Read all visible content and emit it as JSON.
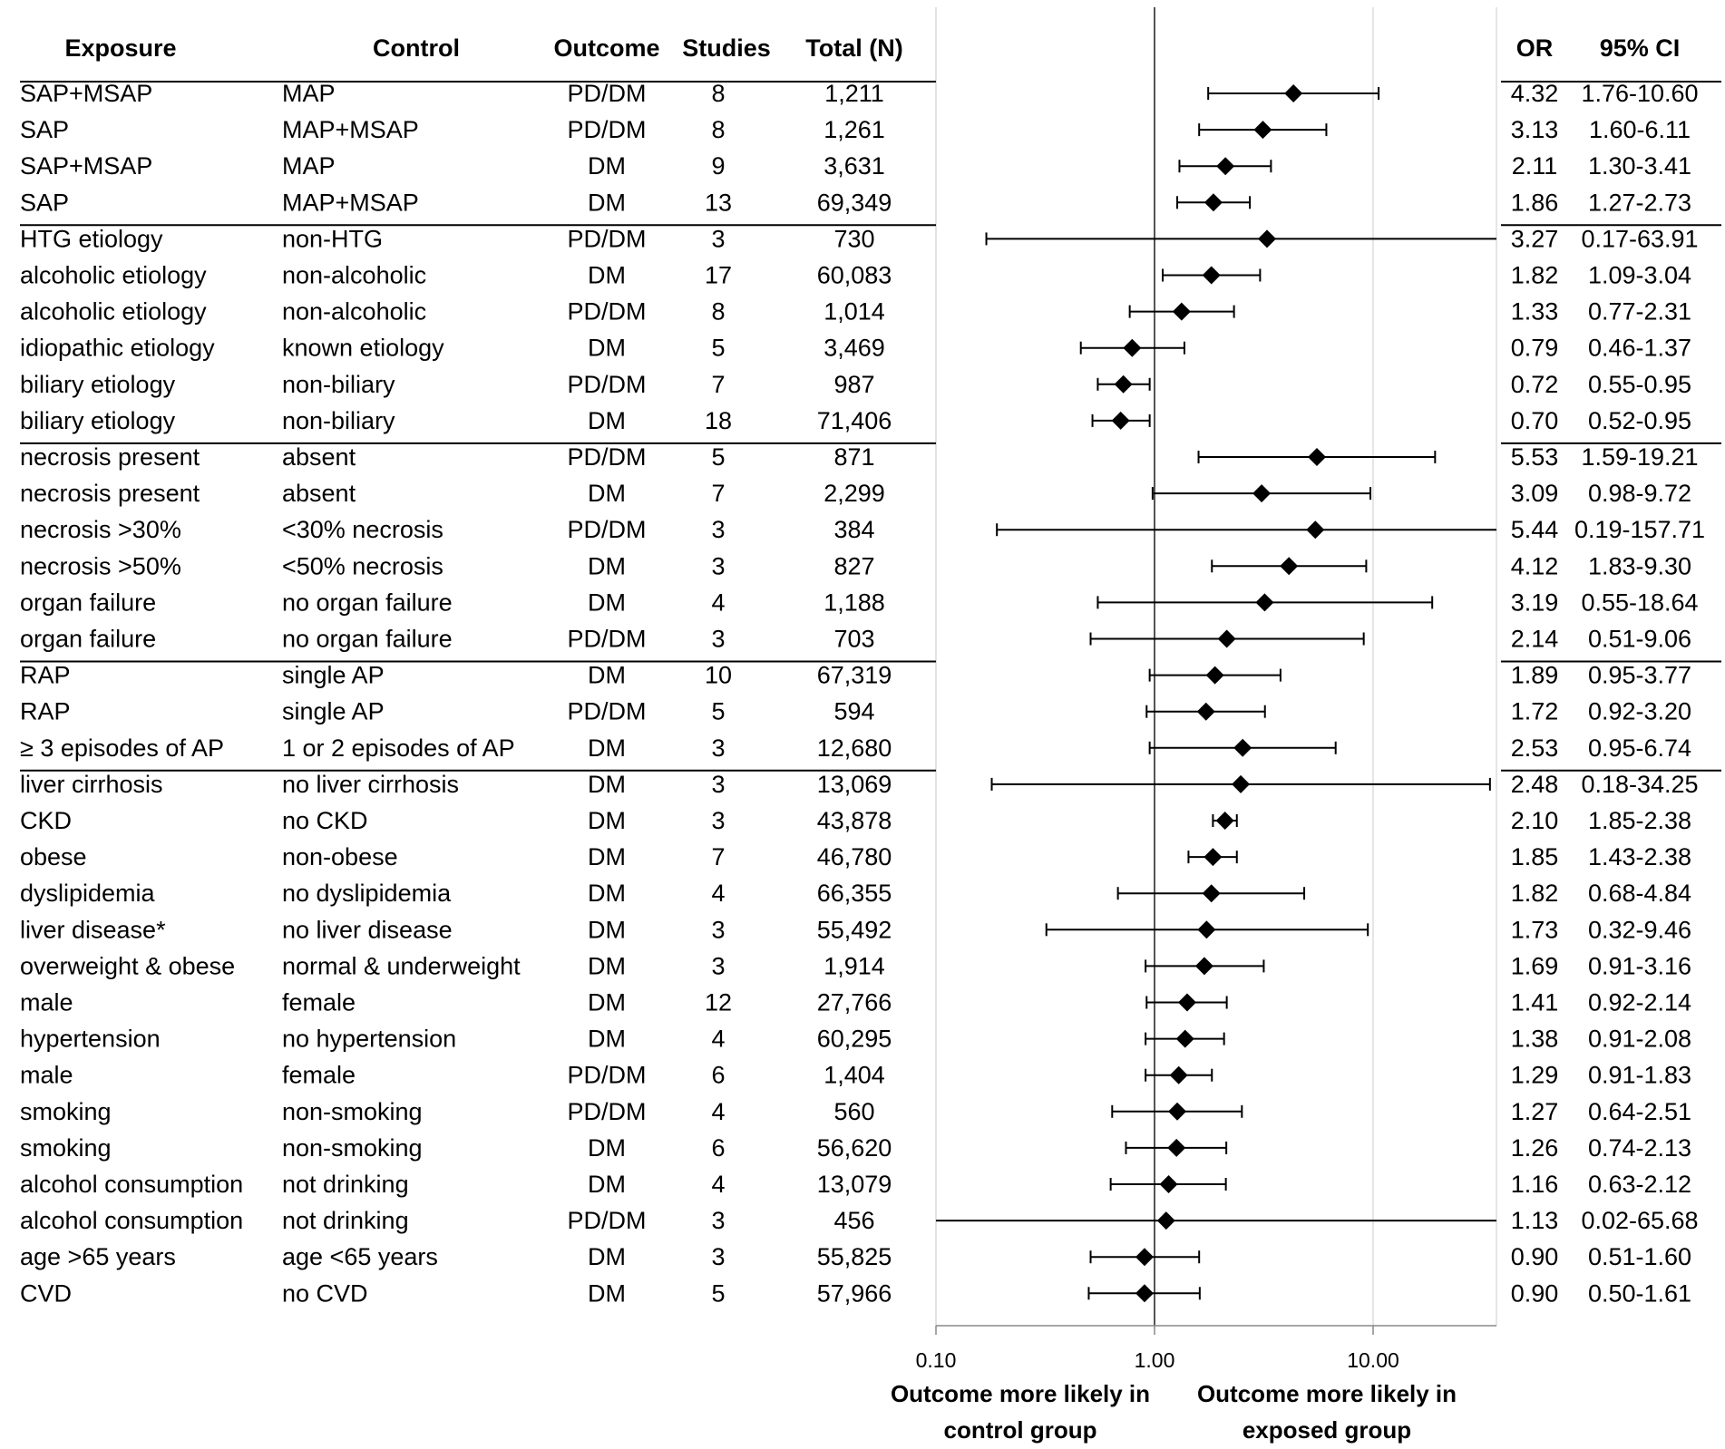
{
  "chart_data": {
    "type": "forest",
    "x_scale": "log",
    "xlim": [
      0.1,
      40
    ],
    "x_ticks": [
      "0.10",
      "1.00",
      "10.00"
    ],
    "reference_value": 1.0,
    "headers": {
      "exposure": "Exposure",
      "control": "Control",
      "outcome": "Outcome",
      "studies": "Studies",
      "total": "Total (N)",
      "or": "OR",
      "ci": "95% CI"
    },
    "xlabel_left": [
      "Outcome more likely in",
      "control group"
    ],
    "xlabel_right": [
      "Outcome more likely in",
      "exposed group"
    ],
    "group_ends": [
      3,
      9,
      15,
      18
    ],
    "rows": [
      {
        "exposure": "SAP+MSAP",
        "control": "MAP",
        "outcome": "PD/DM",
        "studies": "8",
        "total": "1,211",
        "or": 4.32,
        "lo": 1.76,
        "hi": 10.6,
        "or_text": "4.32",
        "ci_text": "1.76-10.60"
      },
      {
        "exposure": "SAP",
        "control": "MAP+MSAP",
        "outcome": "PD/DM",
        "studies": "8",
        "total": "1,261",
        "or": 3.13,
        "lo": 1.6,
        "hi": 6.11,
        "or_text": "3.13",
        "ci_text": "1.60-6.11"
      },
      {
        "exposure": "SAP+MSAP",
        "control": "MAP",
        "outcome": "DM",
        "studies": "9",
        "total": "3,631",
        "or": 2.11,
        "lo": 1.3,
        "hi": 3.41,
        "or_text": "2.11",
        "ci_text": "1.30-3.41"
      },
      {
        "exposure": "SAP",
        "control": "MAP+MSAP",
        "outcome": "DM",
        "studies": "13",
        "total": "69,349",
        "or": 1.86,
        "lo": 1.27,
        "hi": 2.73,
        "or_text": "1.86",
        "ci_text": "1.27-2.73"
      },
      {
        "exposure": "HTG etiology",
        "control": "non-HTG",
        "outcome": "PD/DM",
        "studies": "3",
        "total": "730",
        "or": 3.27,
        "lo": 0.17,
        "hi": 63.91,
        "or_text": "3.27",
        "ci_text": "0.17-63.91"
      },
      {
        "exposure": "alcoholic etiology",
        "control": "non-alcoholic",
        "outcome": "DM",
        "studies": "17",
        "total": "60,083",
        "or": 1.82,
        "lo": 1.09,
        "hi": 3.04,
        "or_text": "1.82",
        "ci_text": "1.09-3.04"
      },
      {
        "exposure": "alcoholic etiology",
        "control": "non-alcoholic",
        "outcome": "PD/DM",
        "studies": "8",
        "total": "1,014",
        "or": 1.33,
        "lo": 0.77,
        "hi": 2.31,
        "or_text": "1.33",
        "ci_text": "0.77-2.31"
      },
      {
        "exposure": "idiopathic etiology",
        "control": "known etiology",
        "outcome": "DM",
        "studies": "5",
        "total": "3,469",
        "or": 0.79,
        "lo": 0.46,
        "hi": 1.37,
        "or_text": "0.79",
        "ci_text": "0.46-1.37"
      },
      {
        "exposure": "biliary etiology",
        "control": "non-biliary",
        "outcome": "PD/DM",
        "studies": "7",
        "total": "987",
        "or": 0.72,
        "lo": 0.55,
        "hi": 0.95,
        "or_text": "0.72",
        "ci_text": "0.55-0.95"
      },
      {
        "exposure": "biliary etiology",
        "control": "non-biliary",
        "outcome": "DM",
        "studies": "18",
        "total": "71,406",
        "or": 0.7,
        "lo": 0.52,
        "hi": 0.95,
        "or_text": "0.70",
        "ci_text": "0.52-0.95"
      },
      {
        "exposure": "necrosis present",
        "control": "absent",
        "outcome": "PD/DM",
        "studies": "5",
        "total": "871",
        "or": 5.53,
        "lo": 1.59,
        "hi": 19.21,
        "or_text": "5.53",
        "ci_text": "1.59-19.21"
      },
      {
        "exposure": "necrosis present",
        "control": "absent",
        "outcome": "DM",
        "studies": "7",
        "total": "2,299",
        "or": 3.09,
        "lo": 0.98,
        "hi": 9.72,
        "or_text": "3.09",
        "ci_text": "0.98-9.72"
      },
      {
        "exposure": "necrosis >30%",
        "control": "<30% necrosis",
        "outcome": "PD/DM",
        "studies": "3",
        "total": "384",
        "or": 5.44,
        "lo": 0.19,
        "hi": 157.71,
        "or_text": "5.44",
        "ci_text": "0.19-157.71"
      },
      {
        "exposure": "necrosis >50%",
        "control": "<50% necrosis",
        "outcome": "DM",
        "studies": "3",
        "total": "827",
        "or": 4.12,
        "lo": 1.83,
        "hi": 9.3,
        "or_text": "4.12",
        "ci_text": "1.83-9.30"
      },
      {
        "exposure": "organ failure",
        "control": "no organ failure",
        "outcome": "DM",
        "studies": "4",
        "total": "1,188",
        "or": 3.19,
        "lo": 0.55,
        "hi": 18.64,
        "or_text": "3.19",
        "ci_text": "0.55-18.64"
      },
      {
        "exposure": "organ failure",
        "control": "no organ failure",
        "outcome": "PD/DM",
        "studies": "3",
        "total": "703",
        "or": 2.14,
        "lo": 0.51,
        "hi": 9.06,
        "or_text": "2.14",
        "ci_text": "0.51-9.06"
      },
      {
        "exposure": "RAP",
        "control": "single AP",
        "outcome": "DM",
        "studies": "10",
        "total": "67,319",
        "or": 1.89,
        "lo": 0.95,
        "hi": 3.77,
        "or_text": "1.89",
        "ci_text": "0.95-3.77"
      },
      {
        "exposure": "RAP",
        "control": "single AP",
        "outcome": "PD/DM",
        "studies": "5",
        "total": "594",
        "or": 1.72,
        "lo": 0.92,
        "hi": 3.2,
        "or_text": "1.72",
        "ci_text": "0.92-3.20"
      },
      {
        "exposure": "≥ 3 episodes of AP",
        "control": "1 or 2 episodes of AP",
        "outcome": "DM",
        "studies": "3",
        "total": "12,680",
        "or": 2.53,
        "lo": 0.95,
        "hi": 6.74,
        "or_text": "2.53",
        "ci_text": "0.95-6.74"
      },
      {
        "exposure": "liver cirrhosis",
        "control": "no liver cirrhosis",
        "outcome": "DM",
        "studies": "3",
        "total": "13,069",
        "or": 2.48,
        "lo": 0.18,
        "hi": 34.25,
        "or_text": "2.48",
        "ci_text": "0.18-34.25"
      },
      {
        "exposure": "CKD",
        "control": "no CKD",
        "outcome": "DM",
        "studies": "3",
        "total": "43,878",
        "or": 2.1,
        "lo": 1.85,
        "hi": 2.38,
        "or_text": "2.10",
        "ci_text": "1.85-2.38"
      },
      {
        "exposure": "obese",
        "control": "non-obese",
        "outcome": "DM",
        "studies": "7",
        "total": "46,780",
        "or": 1.85,
        "lo": 1.43,
        "hi": 2.38,
        "or_text": "1.85",
        "ci_text": "1.43-2.38"
      },
      {
        "exposure": "dyslipidemia",
        "control": "no dyslipidemia",
        "outcome": "DM",
        "studies": "4",
        "total": "66,355",
        "or": 1.82,
        "lo": 0.68,
        "hi": 4.84,
        "or_text": "1.82",
        "ci_text": "0.68-4.84"
      },
      {
        "exposure": "liver disease*",
        "control": "no liver disease",
        "outcome": "DM",
        "studies": "3",
        "total": "55,492",
        "or": 1.73,
        "lo": 0.32,
        "hi": 9.46,
        "or_text": "1.73",
        "ci_text": "0.32-9.46"
      },
      {
        "exposure": "overweight & obese",
        "control": "normal & underweight",
        "outcome": "DM",
        "studies": "3",
        "total": "1,914",
        "or": 1.69,
        "lo": 0.91,
        "hi": 3.16,
        "or_text": "1.69",
        "ci_text": "0.91-3.16"
      },
      {
        "exposure": "male",
        "control": "female",
        "outcome": "DM",
        "studies": "12",
        "total": "27,766",
        "or": 1.41,
        "lo": 0.92,
        "hi": 2.14,
        "or_text": "1.41",
        "ci_text": "0.92-2.14"
      },
      {
        "exposure": "hypertension",
        "control": "no hypertension",
        "outcome": "DM",
        "studies": "4",
        "total": "60,295",
        "or": 1.38,
        "lo": 0.91,
        "hi": 2.08,
        "or_text": "1.38",
        "ci_text": "0.91-2.08"
      },
      {
        "exposure": "male",
        "control": "female",
        "outcome": "PD/DM",
        "studies": "6",
        "total": "1,404",
        "or": 1.29,
        "lo": 0.91,
        "hi": 1.83,
        "or_text": "1.29",
        "ci_text": "0.91-1.83"
      },
      {
        "exposure": "smoking",
        "control": "non-smoking",
        "outcome": "PD/DM",
        "studies": "4",
        "total": "560",
        "or": 1.27,
        "lo": 0.64,
        "hi": 2.51,
        "or_text": "1.27",
        "ci_text": "0.64-2.51"
      },
      {
        "exposure": "smoking",
        "control": "non-smoking",
        "outcome": "DM",
        "studies": "6",
        "total": "56,620",
        "or": 1.26,
        "lo": 0.74,
        "hi": 2.13,
        "or_text": "1.26",
        "ci_text": "0.74-2.13"
      },
      {
        "exposure": "alcohol consumption",
        "control": "not drinking",
        "outcome": "DM",
        "studies": "4",
        "total": "13,079",
        "or": 1.16,
        "lo": 0.63,
        "hi": 2.12,
        "or_text": "1.16",
        "ci_text": "0.63-2.12"
      },
      {
        "exposure": "alcohol consumption",
        "control": "not drinking",
        "outcome": "PD/DM",
        "studies": "3",
        "total": "456",
        "or": 1.13,
        "lo": 0.02,
        "hi": 65.68,
        "or_text": "1.13",
        "ci_text": "0.02-65.68"
      },
      {
        "exposure": "age >65 years",
        "control": "age <65 years",
        "outcome": "DM",
        "studies": "3",
        "total": "55,825",
        "or": 0.9,
        "lo": 0.51,
        "hi": 1.6,
        "or_text": "0.90",
        "ci_text": "0.51-1.60"
      },
      {
        "exposure": "CVD",
        "control": "no CVD",
        "outcome": "DM",
        "studies": "5",
        "total": "57,966",
        "or": 0.9,
        "lo": 0.5,
        "hi": 1.61,
        "or_text": "0.90",
        "ci_text": "0.50-1.61"
      }
    ]
  }
}
